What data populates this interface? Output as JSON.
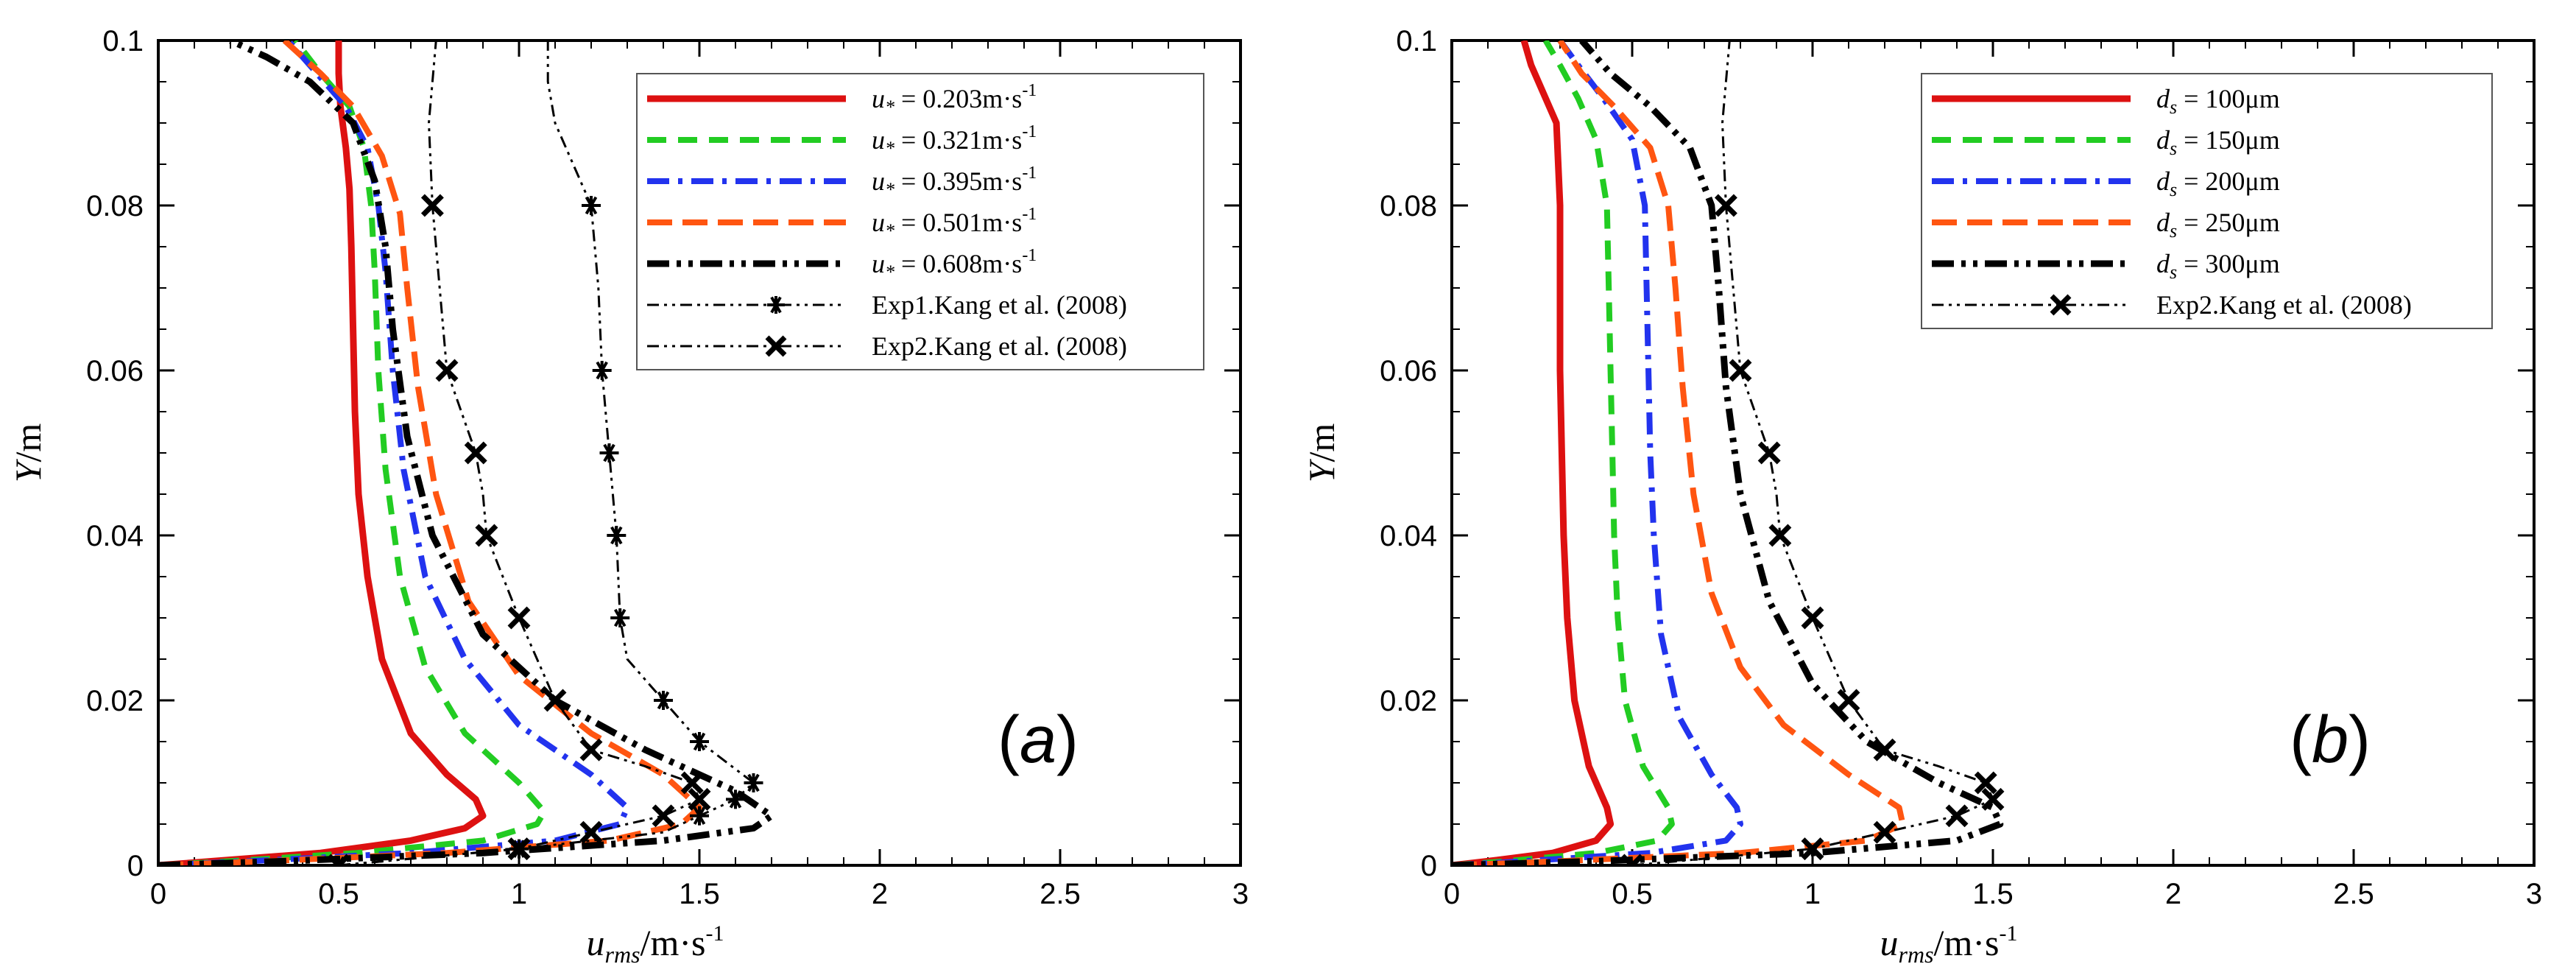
{
  "chart_data": [
    {
      "type": "line",
      "panel_label": "(a)",
      "xlabel": "u_rms / m·s⁻¹",
      "xlabel_main": "u",
      "xlabel_sub": "rms",
      "xlabel_unit": "/m·s",
      "xlabel_sup": "-1",
      "ylabel": "Y/m",
      "xlim": [
        0,
        3
      ],
      "ylim": [
        0,
        0.1
      ],
      "xticks": [
        "0",
        "0.5",
        "1",
        "1.5",
        "2",
        "2.5",
        "3"
      ],
      "yticks": [
        "0",
        "0.02",
        "0.04",
        "0.06",
        "0.08",
        "0.1"
      ],
      "series": [
        {
          "name": "u* = 0.203m·s⁻¹",
          "legend_var": "u",
          "legend_sub": "*",
          "legend_val": " = 0.203m·s",
          "legend_sup": "-1",
          "color": "#dd1111",
          "dash": "",
          "width": 9,
          "x": [
            0,
            0.15,
            0.45,
            0.7,
            0.85,
            0.9,
            0.88,
            0.8,
            0.7,
            0.62,
            0.58,
            0.555,
            0.545,
            0.54,
            0.535,
            0.53,
            0.52,
            0.505,
            0.5,
            0.5
          ],
          "y": [
            0,
            0.0005,
            0.0015,
            0.003,
            0.0045,
            0.006,
            0.008,
            0.011,
            0.016,
            0.025,
            0.035,
            0.045,
            0.055,
            0.065,
            0.075,
            0.082,
            0.087,
            0.092,
            0.096,
            0.1
          ]
        },
        {
          "name": "u* = 0.321m·s⁻¹",
          "legend_var": "u",
          "legend_sub": "*",
          "legend_val": " = 0.321m·s",
          "legend_sup": "-1",
          "color": "#22cc22",
          "dash": "26,16",
          "width": 8,
          "x": [
            0,
            0.2,
            0.55,
            0.9,
            1.05,
            1.07,
            1.0,
            0.85,
            0.74,
            0.67,
            0.63,
            0.61,
            0.6,
            0.59,
            0.57,
            0.53,
            0.45,
            0.38
          ],
          "y": [
            0,
            0.0005,
            0.0015,
            0.003,
            0.005,
            0.0065,
            0.01,
            0.016,
            0.024,
            0.035,
            0.048,
            0.06,
            0.072,
            0.08,
            0.087,
            0.092,
            0.096,
            0.1
          ]
        },
        {
          "name": "u* = 0.395m·s⁻¹",
          "legend_var": "u",
          "legend_sub": "*",
          "legend_val": " = 0.395m·s",
          "legend_sup": "-1",
          "color": "#2233ee",
          "dash": "30,12,6,12",
          "width": 8,
          "x": [
            0,
            0.25,
            0.7,
            1.1,
            1.28,
            1.3,
            1.2,
            1.0,
            0.85,
            0.74,
            0.68,
            0.65,
            0.63,
            0.61,
            0.58,
            0.52,
            0.44,
            0.36
          ],
          "y": [
            0,
            0.0005,
            0.0015,
            0.003,
            0.005,
            0.007,
            0.011,
            0.017,
            0.025,
            0.035,
            0.048,
            0.06,
            0.072,
            0.08,
            0.087,
            0.092,
            0.096,
            0.1
          ]
        },
        {
          "name": "u* = 0.501m·s⁻¹",
          "legend_var": "u",
          "legend_sub": "*",
          "legend_val": " = 0.501m·s",
          "legend_sup": "-1",
          "color": "#ff5511",
          "dash": "34,14",
          "width": 8,
          "x": [
            0,
            0.3,
            0.8,
            1.25,
            1.45,
            1.5,
            1.4,
            1.2,
            1.0,
            0.86,
            0.77,
            0.72,
            0.69,
            0.67,
            0.62,
            0.54,
            0.45,
            0.35
          ],
          "y": [
            0,
            0.0005,
            0.0015,
            0.003,
            0.005,
            0.007,
            0.011,
            0.016,
            0.023,
            0.032,
            0.045,
            0.058,
            0.07,
            0.079,
            0.086,
            0.092,
            0.096,
            0.1
          ]
        },
        {
          "name": "u* = 0.608m·s⁻¹",
          "legend_var": "u",
          "legend_sub": "*",
          "legend_val": " = 0.608m·s",
          "legend_sup": "-1",
          "color": "#000000",
          "dash": "30,10,6,10,6,10",
          "width": 9,
          "x": [
            0,
            0.35,
            0.9,
            1.4,
            1.65,
            1.7,
            1.6,
            1.35,
            1.1,
            0.9,
            0.76,
            0.69,
            0.65,
            0.63,
            0.6,
            0.54,
            0.42,
            0.3,
            0.2
          ],
          "y": [
            0,
            0.0005,
            0.0015,
            0.003,
            0.0045,
            0.006,
            0.009,
            0.014,
            0.02,
            0.028,
            0.04,
            0.052,
            0.065,
            0.075,
            0.083,
            0.09,
            0.095,
            0.098,
            0.1
          ]
        },
        {
          "name": "Exp1.Kang et al. (2008)",
          "legend_text": "Exp1.Kang et al. (2008)",
          "color": "#000000",
          "dash": "16,7,4,7,4,7",
          "width": 3,
          "marker": "*",
          "x": [
            0.5,
            1.0,
            1.4,
            1.5,
            1.6,
            1.65,
            1.5,
            1.4,
            1.3,
            1.28,
            1.27,
            1.25,
            1.23,
            1.22,
            1.2,
            1.1,
            1.08,
            1.08
          ],
          "y": [
            0,
            0.002,
            0.004,
            0.006,
            0.008,
            0.01,
            0.015,
            0.02,
            0.025,
            0.03,
            0.04,
            0.05,
            0.06,
            0.07,
            0.08,
            0.09,
            0.095,
            0.1
          ],
          "marker_indices": [
            0,
            1,
            3,
            4,
            5,
            6,
            7,
            9,
            10,
            11,
            12,
            14
          ]
        },
        {
          "name": "Exp2.Kang et al. (2008)",
          "legend_text": "Exp2.Kang et al. (2008)",
          "color": "#000000",
          "dash": "16,7,4,7,4,7",
          "width": 3,
          "marker": "x",
          "x": [
            0.5,
            1.0,
            1.2,
            1.4,
            1.5,
            1.48,
            1.35,
            1.2,
            1.1,
            1.0,
            0.91,
            0.9,
            0.88,
            0.8,
            0.78,
            0.76,
            0.75,
            0.76,
            0.77
          ],
          "y": [
            0,
            0.002,
            0.004,
            0.006,
            0.008,
            0.01,
            0.012,
            0.014,
            0.02,
            0.03,
            0.04,
            0.045,
            0.05,
            0.06,
            0.07,
            0.08,
            0.09,
            0.095,
            0.1
          ],
          "marker_indices": [
            0,
            1,
            2,
            3,
            4,
            5,
            7,
            8,
            9,
            10,
            12,
            13,
            15
          ]
        }
      ]
    },
    {
      "type": "line",
      "panel_label": "(b)",
      "xlabel": "u_rms / m·s⁻¹",
      "xlabel_main": "u",
      "xlabel_sub": "rms",
      "xlabel_unit": "/m·s",
      "xlabel_sup": "-1",
      "ylabel": "Y/m",
      "xlim": [
        0,
        3
      ],
      "ylim": [
        0,
        0.1
      ],
      "xticks": [
        "0",
        "0.5",
        "1",
        "1.5",
        "2",
        "2.5",
        "3"
      ],
      "yticks": [
        "0",
        "0.02",
        "0.04",
        "0.06",
        "0.08",
        "0.1"
      ],
      "series": [
        {
          "name": "ds = 100μm",
          "legend_var": "d",
          "legend_sub": "s",
          "legend_val": " = 100μm",
          "color": "#dd1111",
          "dash": "",
          "width": 9,
          "x": [
            0,
            0.1,
            0.28,
            0.4,
            0.44,
            0.43,
            0.38,
            0.34,
            0.32,
            0.31,
            0.305,
            0.3,
            0.3,
            0.3,
            0.29,
            0.25,
            0.22,
            0.2
          ],
          "y": [
            0,
            0.0005,
            0.0015,
            0.003,
            0.005,
            0.007,
            0.012,
            0.02,
            0.03,
            0.04,
            0.05,
            0.06,
            0.07,
            0.08,
            0.09,
            0.094,
            0.097,
            0.1
          ]
        },
        {
          "name": "ds = 150μm",
          "legend_var": "d",
          "legend_sub": "s",
          "legend_val": " = 150μm",
          "color": "#22cc22",
          "dash": "26,16",
          "width": 8,
          "x": [
            0,
            0.15,
            0.4,
            0.57,
            0.61,
            0.6,
            0.53,
            0.48,
            0.46,
            0.45,
            0.445,
            0.44,
            0.435,
            0.43,
            0.4,
            0.35,
            0.3,
            0.26
          ],
          "y": [
            0,
            0.0005,
            0.0015,
            0.003,
            0.005,
            0.007,
            0.012,
            0.02,
            0.03,
            0.04,
            0.05,
            0.06,
            0.07,
            0.08,
            0.088,
            0.093,
            0.097,
            0.1
          ]
        },
        {
          "name": "ds = 200μm",
          "legend_var": "d",
          "legend_sub": "s",
          "legend_val": " = 200μm",
          "color": "#2233ee",
          "dash": "30,12,6,12",
          "width": 8,
          "x": [
            0,
            0.2,
            0.55,
            0.76,
            0.8,
            0.79,
            0.72,
            0.63,
            0.58,
            0.56,
            0.55,
            0.545,
            0.54,
            0.535,
            0.5,
            0.42,
            0.35,
            0.3
          ],
          "y": [
            0,
            0.0005,
            0.0015,
            0.003,
            0.005,
            0.007,
            0.011,
            0.018,
            0.028,
            0.04,
            0.05,
            0.06,
            0.07,
            0.08,
            0.088,
            0.093,
            0.097,
            0.1
          ]
        },
        {
          "name": "ds = 250μm",
          "legend_var": "d",
          "legend_sub": "s",
          "legend_val": " = 250μm",
          "color": "#ff5511",
          "dash": "34,14",
          "width": 8,
          "x": [
            0,
            0.3,
            0.8,
            1.15,
            1.25,
            1.24,
            1.1,
            0.92,
            0.8,
            0.72,
            0.67,
            0.64,
            0.62,
            0.6,
            0.55,
            0.45,
            0.36,
            0.3
          ],
          "y": [
            0,
            0.0005,
            0.0015,
            0.003,
            0.005,
            0.007,
            0.011,
            0.017,
            0.024,
            0.033,
            0.045,
            0.058,
            0.07,
            0.08,
            0.087,
            0.092,
            0.096,
            0.1
          ]
        },
        {
          "name": "ds = 300μm",
          "legend_var": "d",
          "legend_sub": "s",
          "legend_val": " = 300μm",
          "color": "#000000",
          "dash": "30,10,6,10,6,10",
          "width": 9,
          "x": [
            0,
            0.4,
            1.0,
            1.4,
            1.52,
            1.5,
            1.35,
            1.15,
            1.0,
            0.88,
            0.8,
            0.76,
            0.74,
            0.72,
            0.66,
            0.55,
            0.44,
            0.36
          ],
          "y": [
            0,
            0.0005,
            0.0015,
            0.003,
            0.005,
            0.007,
            0.01,
            0.015,
            0.022,
            0.032,
            0.045,
            0.058,
            0.07,
            0.08,
            0.087,
            0.092,
            0.096,
            0.1
          ]
        },
        {
          "name": "Exp2.Kang et al. (2008)",
          "legend_text": "Exp2.Kang et al. (2008)",
          "color": "#000000",
          "dash": "16,7,4,7,4,7",
          "width": 3,
          "marker": "x",
          "x": [
            0.5,
            1.0,
            1.2,
            1.4,
            1.5,
            1.48,
            1.35,
            1.2,
            1.1,
            1.0,
            0.91,
            0.9,
            0.88,
            0.8,
            0.78,
            0.76,
            0.75,
            0.76,
            0.77
          ],
          "y": [
            0,
            0.002,
            0.004,
            0.006,
            0.008,
            0.01,
            0.012,
            0.014,
            0.02,
            0.03,
            0.04,
            0.045,
            0.05,
            0.06,
            0.07,
            0.08,
            0.09,
            0.095,
            0.1
          ],
          "marker_indices": [
            0,
            1,
            2,
            3,
            4,
            5,
            7,
            8,
            9,
            10,
            12,
            13,
            15
          ]
        }
      ]
    }
  ]
}
